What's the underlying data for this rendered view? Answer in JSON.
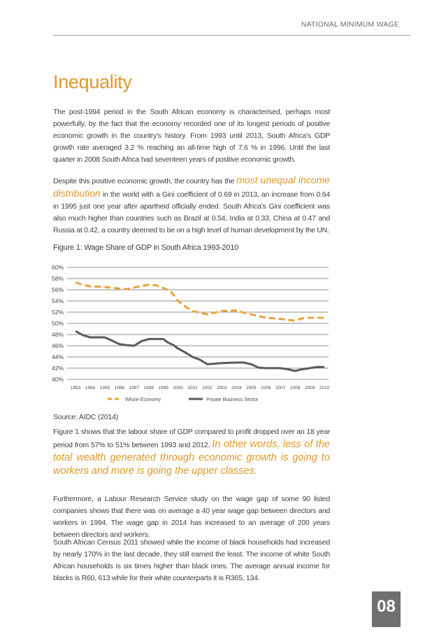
{
  "header": {
    "section": "NATIONAL MINIMUM WAGE"
  },
  "title": "Inequality",
  "paragraphs": {
    "p1": "The post-1994 period in the South African economy is characterised, perhaps most powerfully, by the fact that the economy recorded one of its longest periods of positive economic growth in the country's history. From 1993 until 2013, South Africa's GDP growth rate averaged 3.2 % reaching an all-time high of 7.6 % in 1996. Until the last quarter in 2008 South Africa had seventeen years of positive economic growth.",
    "p2_before": "Despite this positive economic growth, the country has the ",
    "p2_highlight": "most unequal income distribution",
    "p2_after": " in the world with a Gini coefficient of 0.69 in 2013, an increase from 0.64 in 1995 just one year after apartheid officially ended. South Africa's Gini coefficient was also much higher than countries such as Brazil at 0.54, India at 0.33, China at 0.47 and Russia at 0.42, a country deemed to be on a high level of human development by the UN.",
    "p3_before": "Figure 1 shows that the labour share of GDP compared to profit dropped over an 18 year period from 57% to 51% between 1993 and 2012. ",
    "p3_highlight": "In other words, less of the total wealth generated through economic growth is going to workers and more is going the upper classes.",
    "p4": "Furthermore, a Labour Research Service study on the wage gap of some 90 listed companies shows that there was on average a 40 year wage gap between directors and workers in 1994. The wage gap in 2014 has increased to an average of 200 years between directors and workers.",
    "p5": "South African Census 2011 showed while the income of black households had increased by nearly 170% in the last decade, they still earned the least. The income of white South African households is six times higher than black ones.  The average annual income for blacks is R60, 613 while for their white counterparts it is R365, 134."
  },
  "figure": {
    "title": "Figure 1: Wage Share of GDP in South Africa 1993-2010",
    "source": "Source: AIDC (2014)"
  },
  "chart_data": {
    "type": "line",
    "title": "Figure 1: Wage Share of GDP in South Africa 1993-2010",
    "xlabel": "",
    "ylabel": "",
    "ylim": [
      40,
      60
    ],
    "y_ticks": [
      "40%",
      "42%",
      "44%",
      "46%",
      "48%",
      "50%",
      "52%",
      "54%",
      "56%",
      "58%",
      "60%"
    ],
    "x": [
      "1993",
      "1994",
      "1995",
      "1996",
      "1997",
      "1998",
      "1999",
      "2000",
      "2001",
      "2002",
      "2003",
      "2004",
      "2005",
      "2006",
      "2007",
      "2008",
      "2009",
      "2010"
    ],
    "grid": true,
    "legend_position": "bottom",
    "series": [
      {
        "name": "Whole Economy",
        "style": "dashed",
        "color": "#e8a33c",
        "points": [
          [
            1993,
            57.3
          ],
          [
            1993.5,
            56.9
          ],
          [
            1994,
            56.6
          ],
          [
            1995,
            56.5
          ],
          [
            1996,
            56.2
          ],
          [
            1996.5,
            56.1
          ],
          [
            1997,
            56.4
          ],
          [
            1998,
            56.9
          ],
          [
            1998.5,
            56.8
          ],
          [
            1999,
            56.3
          ],
          [
            1999.5,
            55.8
          ],
          [
            2000,
            54.0
          ],
          [
            2000.5,
            53.0
          ],
          [
            2001,
            52.2
          ],
          [
            2002,
            51.6
          ],
          [
            2002.5,
            51.9
          ],
          [
            2003,
            52.2
          ],
          [
            2004,
            52.3
          ],
          [
            2004.5,
            51.9
          ],
          [
            2005,
            51.6
          ],
          [
            2006,
            51.0
          ],
          [
            2006.5,
            50.9
          ],
          [
            2007,
            50.8
          ],
          [
            2007.5,
            50.6
          ],
          [
            2008,
            50.5
          ],
          [
            2008.5,
            50.9
          ],
          [
            2009,
            51.0
          ],
          [
            2010,
            51.0
          ]
        ]
      },
      {
        "name": "Private Business Sector",
        "style": "solid",
        "color": "#5a5a5a",
        "points": [
          [
            1993,
            48.6
          ],
          [
            1993.5,
            47.9
          ],
          [
            1994,
            47.5
          ],
          [
            1995,
            47.5
          ],
          [
            1995.5,
            46.9
          ],
          [
            1996,
            46.3
          ],
          [
            1996.5,
            46.1
          ],
          [
            1997,
            46.0
          ],
          [
            1997.5,
            46.8
          ],
          [
            1998,
            47.2
          ],
          [
            1999,
            47.2
          ],
          [
            1999.3,
            46.6
          ],
          [
            1999.7,
            46.1
          ],
          [
            2000,
            45.5
          ],
          [
            2000.5,
            44.8
          ],
          [
            2001,
            44.0
          ],
          [
            2001.5,
            43.5
          ],
          [
            2002,
            42.7
          ],
          [
            2002.5,
            42.8
          ],
          [
            2003,
            42.9
          ],
          [
            2004,
            43.0
          ],
          [
            2004.5,
            43.0
          ],
          [
            2005,
            42.7
          ],
          [
            2005.5,
            42.1
          ],
          [
            2006,
            42.0
          ],
          [
            2007,
            42.0
          ],
          [
            2007.5,
            41.8
          ],
          [
            2008,
            41.5
          ],
          [
            2008.5,
            41.8
          ],
          [
            2009,
            42.0
          ],
          [
            2009.5,
            42.2
          ],
          [
            2010,
            42.2
          ]
        ]
      }
    ]
  },
  "page_number": "08"
}
